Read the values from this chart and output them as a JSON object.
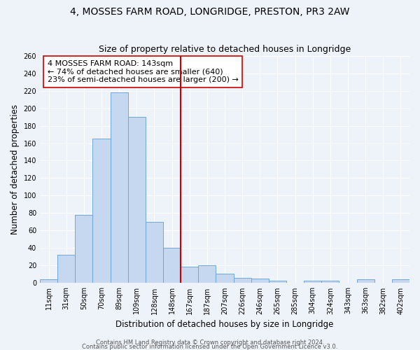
{
  "title": "4, MOSSES FARM ROAD, LONGRIDGE, PRESTON, PR3 2AW",
  "subtitle": "Size of property relative to detached houses in Longridge",
  "xlabel": "Distribution of detached houses by size in Longridge",
  "ylabel": "Number of detached properties",
  "bar_labels": [
    "11sqm",
    "31sqm",
    "50sqm",
    "70sqm",
    "89sqm",
    "109sqm",
    "128sqm",
    "148sqm",
    "167sqm",
    "187sqm",
    "207sqm",
    "226sqm",
    "246sqm",
    "265sqm",
    "285sqm",
    "304sqm",
    "324sqm",
    "343sqm",
    "363sqm",
    "382sqm",
    "402sqm"
  ],
  "bar_heights": [
    4,
    32,
    78,
    165,
    218,
    190,
    70,
    40,
    19,
    20,
    11,
    6,
    5,
    3,
    0,
    3,
    3,
    0,
    4,
    0,
    4
  ],
  "bar_color": "#c5d8f0",
  "bar_edge_color": "#6ea8d8",
  "vline_x": 7.5,
  "vline_color": "#cc0000",
  "annotation_text": "4 MOSSES FARM ROAD: 143sqm\n← 74% of detached houses are smaller (640)\n23% of semi-detached houses are larger (200) →",
  "annotation_box_color": "#ffffff",
  "annotation_box_edge": "#cc0000",
  "ylim": [
    0,
    260
  ],
  "yticks": [
    0,
    20,
    40,
    60,
    80,
    100,
    120,
    140,
    160,
    180,
    200,
    220,
    240,
    260
  ],
  "footer1": "Contains HM Land Registry data © Crown copyright and database right 2024.",
  "footer2": "Contains public sector information licensed under the Open Government Licence v3.0.",
  "bg_color": "#eef2f9",
  "grid_color": "#ffffff",
  "title_fontsize": 10,
  "subtitle_fontsize": 9,
  "axis_label_fontsize": 8.5,
  "tick_fontsize": 7,
  "annotation_fontsize": 8,
  "footer_fontsize": 6
}
